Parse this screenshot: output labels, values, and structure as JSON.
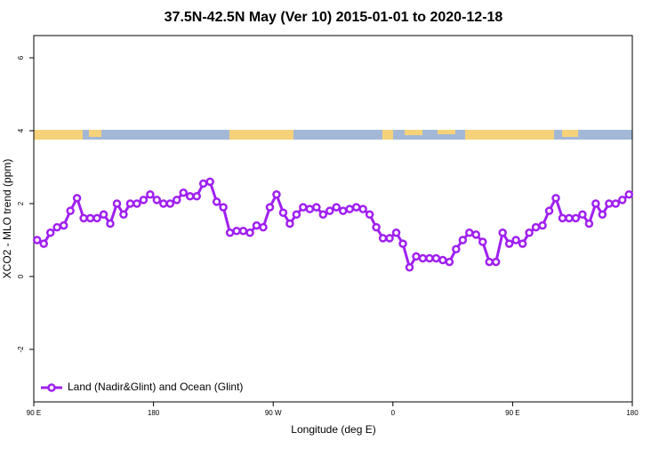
{
  "chart_data": {
    "type": "line",
    "title": "37.5N-42.5N May (Ver 10)   2015-01-01 to 2020-12-18",
    "x_label": "Longitude (deg E)",
    "y_label": "XCO2 - MLO trend (ppm)",
    "x": [
      92.5,
      97.5,
      102.5,
      107.5,
      112.5,
      117.5,
      122.5,
      127.5,
      132.5,
      137.5,
      142.5,
      147.5,
      152.5,
      157.5,
      162.5,
      167.5,
      172.5,
      177.5,
      182.5,
      187.5,
      192.5,
      197.5,
      202.5,
      207.5,
      212.5,
      217.5,
      222.5,
      227.5,
      232.5,
      237.5,
      242.5,
      247.5,
      252.5,
      257.5,
      262.5,
      267.5,
      272.5,
      277.5,
      282.5,
      287.5,
      292.5,
      297.5,
      302.5,
      307.5,
      312.5,
      317.5,
      322.5,
      327.5,
      332.5,
      337.5,
      342.5,
      347.5,
      352.5,
      357.5,
      362.5,
      367.5,
      372.5,
      377.5,
      382.5,
      387.5,
      392.5,
      397.5,
      402.5,
      407.5,
      412.5,
      417.5,
      422.5,
      427.5,
      432.5,
      437.5,
      442.5,
      447.5,
      452.5,
      457.5,
      462.5,
      467.5,
      472.5,
      477.5,
      482.5,
      487.5,
      492.5,
      497.5,
      502.5,
      507.5,
      512.5,
      517.5,
      522.5,
      527.5,
      532.5,
      537.5
    ],
    "series": [
      {
        "name": "Land (Nadir&Glint) and Ocean (Glint)",
        "color": "#a020f0",
        "values": [
          1.0,
          0.9,
          1.2,
          1.35,
          1.4,
          1.8,
          2.15,
          1.6,
          1.6,
          1.6,
          1.7,
          1.45,
          2.0,
          1.7,
          2.0,
          2.0,
          2.1,
          2.25,
          2.1,
          2.0,
          2.0,
          2.1,
          2.3,
          2.2,
          2.2,
          2.55,
          2.6,
          2.05,
          1.9,
          1.2,
          1.25,
          1.25,
          1.2,
          1.4,
          1.35,
          1.9,
          2.25,
          1.75,
          1.45,
          1.7,
          1.9,
          1.85,
          1.9,
          1.7,
          1.8,
          1.9,
          1.8,
          1.85,
          1.9,
          1.85,
          1.7,
          1.35,
          1.05,
          1.05,
          1.2,
          0.9,
          0.25,
          0.55,
          0.5,
          0.5,
          0.5,
          0.45,
          0.4,
          0.75,
          1.0,
          1.2,
          1.15,
          0.95,
          0.4,
          0.4,
          1.2,
          0.9,
          1.0,
          0.9,
          1.2,
          1.35,
          1.4,
          1.8,
          2.15,
          1.6,
          1.6,
          1.6,
          1.7,
          1.45,
          2.0,
          1.7,
          2.0,
          2.0,
          2.1,
          2.25
        ]
      }
    ],
    "xlim": [
      90,
      540
    ],
    "ylim": [
      -3.44,
      6.61
    ],
    "xticks": [
      {
        "value": 90,
        "label": "90 E"
      },
      180,
      {
        "value": 270,
        "label": "90 W"
      },
      {
        "value": 360,
        "label": "0"
      },
      {
        "value": 450,
        "label": "90 E"
      },
      {
        "value": 540,
        "label": "180"
      }
    ],
    "yticks": [
      -2,
      0,
      2,
      4,
      6
    ],
    "legend": "bottom-left"
  }
}
